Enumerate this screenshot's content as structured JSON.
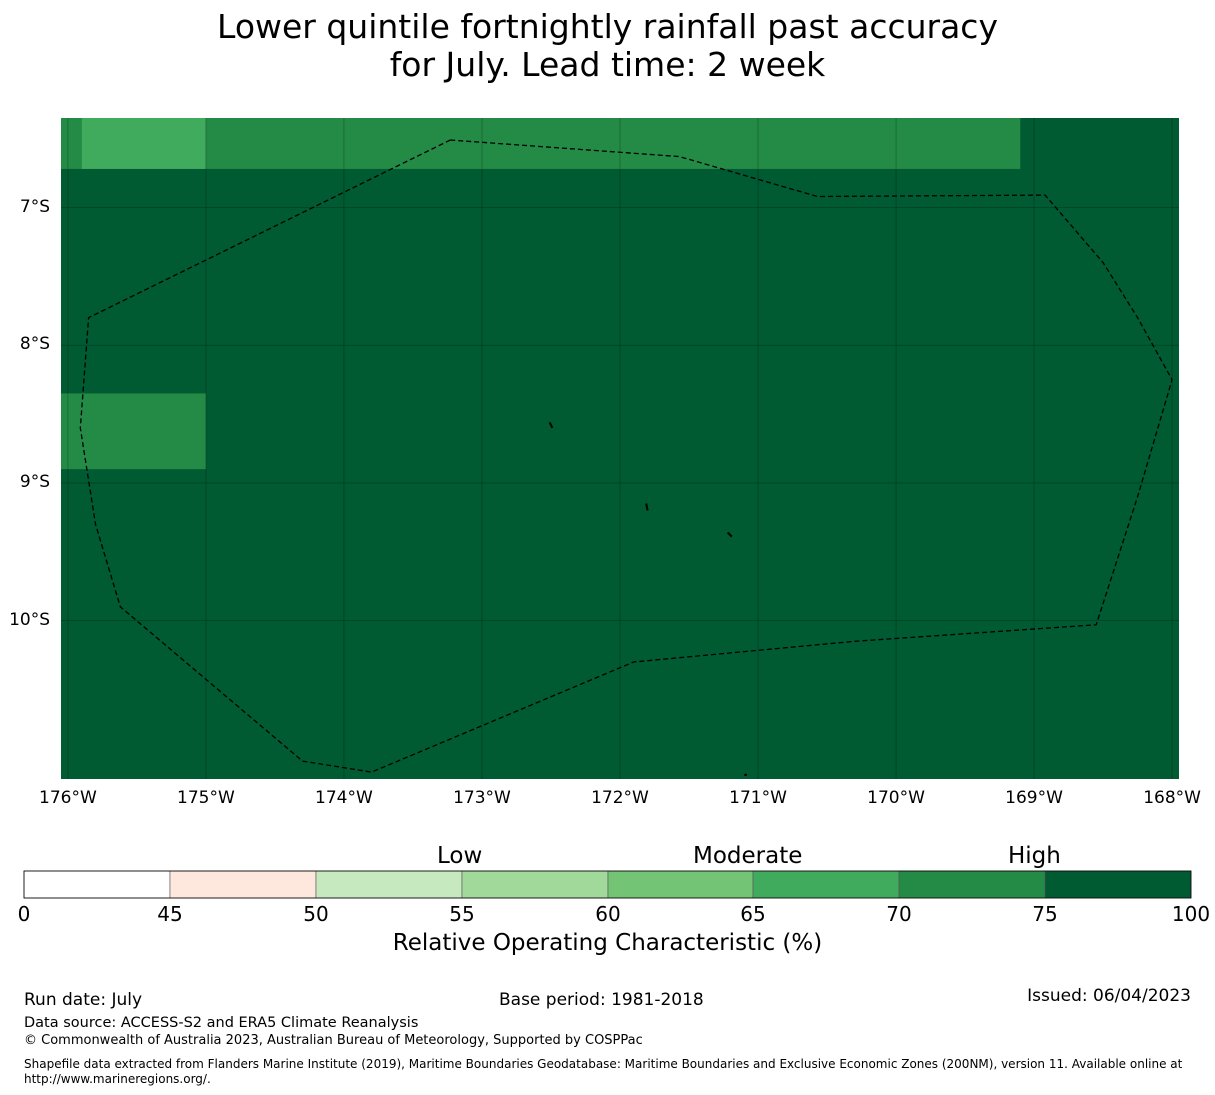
{
  "title_line1": "Lower quintile fortnightly rainfall past accuracy",
  "title_line2": "for July. Lead time: 2 week",
  "map": {
    "lon_range": [
      -176.05,
      -167.95
    ],
    "lat_range": [
      -11.15,
      -6.35
    ],
    "lat_ticks": [
      {
        "value": -7,
        "label": "7°S"
      },
      {
        "value": -8,
        "label": "8°S"
      },
      {
        "value": -9,
        "label": "9°S"
      },
      {
        "value": -10,
        "label": "10°S"
      }
    ],
    "lon_ticks": [
      {
        "value": -176,
        "label": "176°W"
      },
      {
        "value": -175,
        "label": "175°W"
      },
      {
        "value": -174,
        "label": "174°W"
      },
      {
        "value": -173,
        "label": "173°W"
      },
      {
        "value": -172,
        "label": "172°W"
      },
      {
        "value": -171,
        "label": "171°W"
      },
      {
        "value": -170,
        "label": "170°W"
      },
      {
        "value": -169,
        "label": "169°W"
      },
      {
        "value": -168,
        "label": "168°W"
      }
    ],
    "background_color": "#005a32",
    "cells": [
      {
        "lon0": -176.05,
        "lon1": -175.9,
        "lat0": -6.72,
        "lat1": -6.35,
        "color": "#238b45"
      },
      {
        "lon0": -175.9,
        "lon1": -175.0,
        "lat0": -6.72,
        "lat1": -6.35,
        "color": "#41ab5d"
      },
      {
        "lon0": -175.0,
        "lon1": -169.1,
        "lat0": -6.72,
        "lat1": -6.35,
        "color": "#238b45"
      },
      {
        "lon0": -176.05,
        "lon1": -175.0,
        "lat0": -8.9,
        "lat1": -8.35,
        "color": "#238b45"
      }
    ],
    "eez_boundary": [
      [
        -173.23,
        -6.51
      ],
      [
        -171.57,
        -6.63
      ],
      [
        -170.57,
        -6.92
      ],
      [
        -168.92,
        -6.91
      ],
      [
        -168.5,
        -7.4
      ],
      [
        -168.25,
        -7.8
      ],
      [
        -168.0,
        -8.25
      ],
      [
        -168.25,
        -9.1
      ],
      [
        -168.55,
        -10.03
      ],
      [
        -170.3,
        -10.15
      ],
      [
        -171.9,
        -10.3
      ],
      [
        -173.8,
        -11.1
      ],
      [
        -174.3,
        -11.02
      ],
      [
        -175.62,
        -9.9
      ],
      [
        -175.8,
        -9.3
      ],
      [
        -175.91,
        -8.6
      ],
      [
        -175.85,
        -7.8
      ],
      [
        -173.23,
        -6.51
      ]
    ],
    "islands": [
      [
        [
          -172.51,
          -8.56
        ],
        [
          -172.49,
          -8.6
        ]
      ],
      [
        [
          -171.81,
          -9.15
        ],
        [
          -171.8,
          -9.2
        ]
      ],
      [
        [
          -171.22,
          -9.36
        ],
        [
          -171.19,
          -9.39
        ]
      ],
      [
        [
          -171.1,
          -11.12
        ],
        [
          -171.08,
          -11.12
        ]
      ]
    ]
  },
  "colorbar": {
    "bands": [
      {
        "from": 0,
        "to": 45,
        "color": "#ffffff"
      },
      {
        "from": 45,
        "to": 50,
        "color": "#fee8de"
      },
      {
        "from": 50,
        "to": 55,
        "color": "#c7e9c0"
      },
      {
        "from": 55,
        "to": 60,
        "color": "#a1d99b"
      },
      {
        "from": 60,
        "to": 65,
        "color": "#74c476"
      },
      {
        "from": 65,
        "to": 70,
        "color": "#41ab5d"
      },
      {
        "from": 70,
        "to": 75,
        "color": "#238b45"
      },
      {
        "from": 75,
        "to": 100,
        "color": "#005a32"
      }
    ],
    "ticks": [
      "0",
      "45",
      "50",
      "55",
      "60",
      "65",
      "70",
      "75",
      "100"
    ],
    "band_labels": [
      "Low",
      "Moderate",
      "High"
    ],
    "label": "Relative Operating Characteristic (%)"
  },
  "footer": {
    "run_date": "Run date: July",
    "base_period": "Base period: 1981-2018",
    "issued": "Issued: 06/04/2023",
    "data_source": "Data source: ACCESS-S2 and ERA5 Climate Reanalysis",
    "copyright": "© Commonwealth of Australia 2023, Australian Bureau of Meteorology, Supported by COSPPac",
    "shapefile_line1": "Shapefile data extracted from Flanders Marine Institute (2019), Maritime Boundaries Geodatabase: Maritime Boundaries and Exclusive Economic Zones (200NM), version 11. Available online at",
    "shapefile_line2": "http://www.marineregions.org/."
  }
}
